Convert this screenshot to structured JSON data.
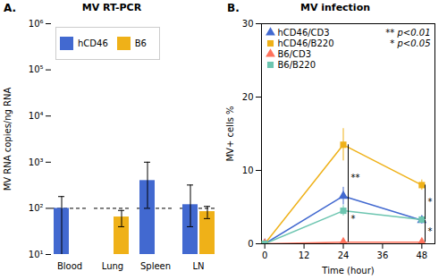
{
  "chart_data": [
    {
      "type": "bar",
      "panel_label": "A.",
      "title": "MV RT-PCR",
      "ylabel": "MV RNA copies/ng RNA",
      "categories": [
        "Blood",
        "Lung",
        "Spleen",
        "LN"
      ],
      "series": [
        {
          "name": "hCD46",
          "values": [
            100,
            null,
            400,
            120
          ],
          "err_low": [
            90,
            null,
            300,
            80
          ],
          "err_high": [
            80,
            null,
            600,
            200
          ]
        },
        {
          "name": "B6",
          "values": [
            null,
            65,
            null,
            85
          ],
          "err_low": [
            null,
            25,
            null,
            25
          ],
          "err_high": [
            null,
            25,
            null,
            25
          ]
        }
      ],
      "log": "y",
      "ylim": [
        10,
        1000000
      ],
      "yticks": [
        {
          "value": 10,
          "label": "10¹"
        },
        {
          "value": 100,
          "label": "10²"
        },
        {
          "value": 1000,
          "label": "10³"
        },
        {
          "value": 10000,
          "label": "10⁴"
        },
        {
          "value": 100000,
          "label": "10⁵"
        },
        {
          "value": 1000000,
          "label": "10⁶"
        }
      ],
      "reference_line": {
        "y": 100,
        "line_style": "dashed"
      },
      "legend": "upper left"
    },
    {
      "type": "line",
      "panel_label": "B.",
      "title": "MV infection",
      "xlabel": "Time (hour)",
      "ylabel": "MV+ cells %",
      "x": [
        0,
        24,
        48
      ],
      "series": [
        {
          "name": "hCD46/CD3",
          "marker": "triangle",
          "values": [
            0,
            6.5,
            3.2
          ],
          "errors": [
            0,
            1.2,
            0.5
          ]
        },
        {
          "name": "hCD46/B220",
          "marker": "square",
          "values": [
            0,
            13.5,
            8.0
          ],
          "errors": [
            0,
            2.2,
            0.7
          ]
        },
        {
          "name": "B6/CD3",
          "marker": "triangle",
          "values": [
            0,
            0.2,
            0.2
          ],
          "errors": [
            0,
            0.15,
            0.1
          ]
        },
        {
          "name": "B6/B220",
          "marker": "square",
          "values": [
            0,
            4.5,
            3.3
          ],
          "errors": [
            0,
            0.7,
            0.4
          ]
        }
      ],
      "xlim": [
        -1,
        52
      ],
      "xticks": [
        0,
        12,
        24,
        36,
        48
      ],
      "ylim": [
        0,
        30
      ],
      "yticks": [
        0,
        10,
        20,
        30
      ],
      "legend": "upper left",
      "annotations": [
        "** p<0.01",
        "* p<0.05"
      ],
      "brackets": [
        {
          "x": 25.5,
          "y1": 4.5,
          "y2": 13.5,
          "label": "**"
        },
        {
          "x": 25.5,
          "y1": 0.2,
          "y2": 6.5,
          "label": "*"
        },
        {
          "x": 49.0,
          "y1": 3.3,
          "y2": 8.0,
          "label": "*"
        },
        {
          "x": 49.0,
          "y1": 0.2,
          "y2": 3.2,
          "label": "*"
        }
      ]
    }
  ]
}
